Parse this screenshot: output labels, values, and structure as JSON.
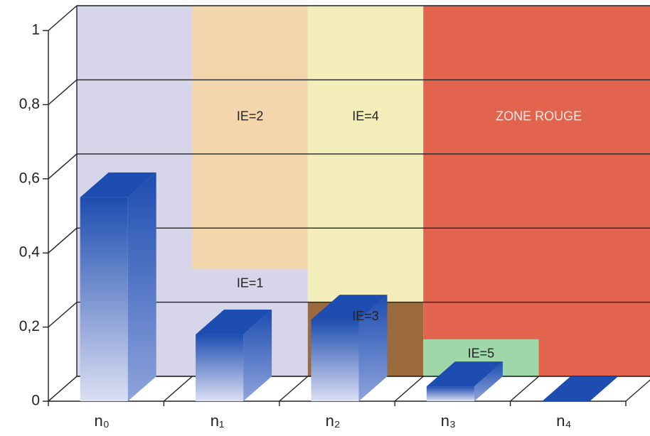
{
  "chart_data": {
    "type": "bar3d",
    "categories": [
      "n₀",
      "n₁",
      "n₂",
      "n₃",
      "n₄"
    ],
    "values": [
      0.55,
      0.18,
      0.22,
      0.04,
      0
    ],
    "color": "#1d4db0",
    "ylim": [
      0,
      1
    ],
    "yticks": [
      0,
      {
        "value": 0.2,
        "label": "0,2"
      },
      {
        "value": 0.4,
        "label": "0,4"
      },
      {
        "value": 0.6,
        "label": "0,6"
      },
      {
        "value": 0.8,
        "label": "0,8"
      },
      1
    ],
    "grid": true,
    "zones": [
      {
        "x": [
          0,
          1
        ],
        "y": [
          0,
          1
        ],
        "color": "#d6d5ea"
      },
      {
        "label": "IE=1",
        "x": [
          1,
          2
        ],
        "y": [
          0,
          0.29
        ],
        "color": "#d6d5ea",
        "text_color": "#222222"
      },
      {
        "label": "IE=2",
        "x": [
          1,
          2
        ],
        "y": [
          0.29,
          1
        ],
        "color": "#f3d6ab",
        "text_color": "#222222"
      },
      {
        "label": "IE=3",
        "x": [
          2,
          3
        ],
        "y": [
          0,
          0.2
        ],
        "color": "#9b6b3d",
        "text_color": "#222222"
      },
      {
        "label": "IE=4",
        "x": [
          2,
          3
        ],
        "y": [
          0.2,
          1
        ],
        "color": "#f3edba",
        "text_color": "#222222"
      },
      {
        "label": "ZONE ROUGE",
        "x": [
          3,
          5
        ],
        "y": [
          0,
          1
        ],
        "color": "#e2644f",
        "text_color": "#fbe8e0"
      },
      {
        "label": "IE=5",
        "x": [
          3,
          4
        ],
        "y": [
          0,
          0.1
        ],
        "color": "#9fd7a9",
        "text_color": "#222222"
      }
    ]
  }
}
